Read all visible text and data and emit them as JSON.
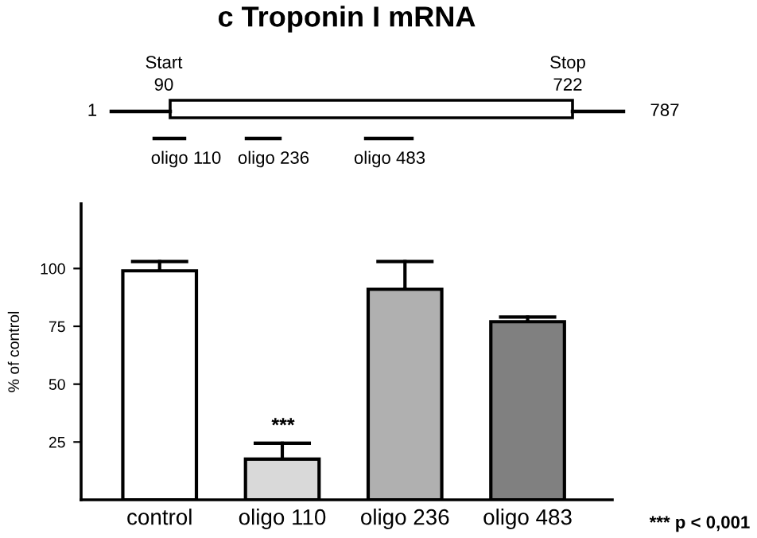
{
  "chart_data": {
    "type": "bar",
    "title": "c Troponin I mRNA",
    "ylabel": "% of control",
    "categories": [
      "control",
      "oligo 110",
      "oligo 236",
      "oligo 483"
    ],
    "values": [
      99,
      17.6,
      91,
      77
    ],
    "errors": [
      [
        99,
        103
      ],
      [
        17.6,
        24.5
      ],
      [
        91,
        103
      ],
      [
        77,
        79
      ]
    ],
    "colors": [
      "#ffffff",
      "#d9d9d9",
      "#b0b0b0",
      "#808080"
    ],
    "ylim": [
      0,
      128
    ],
    "yticks": [
      25,
      50,
      75,
      100
    ],
    "grid": false,
    "legend": false,
    "annotations": [
      "***",
      "*** p < 0,001",
      "Start",
      "90",
      "Stop",
      "722",
      "1",
      "787",
      "oligo 110",
      "oligo 236",
      "oligo 483"
    ]
  }
}
